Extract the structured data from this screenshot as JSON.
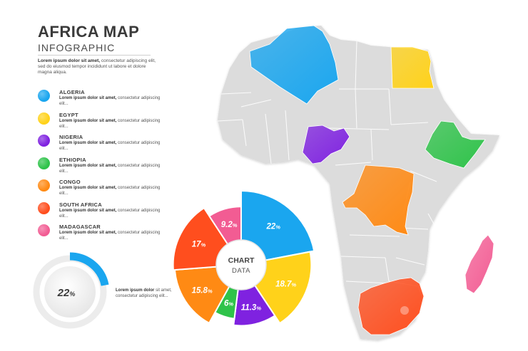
{
  "header": {
    "title": "AFRICA MAP",
    "subtitle": "INFOGRAPHIC"
  },
  "intro": {
    "bold": "Lorem ipsum dolor sit amet,",
    "rest": " consectetur adipiscing elit, sed do eiusmod tempor incididunt ut labore et dolore magna aliqua."
  },
  "legend": {
    "items": [
      {
        "name": "ALGERIA",
        "color": "#1aa6ef",
        "desc_bold": "Lorem ipsum dolor sit amet,",
        "desc_rest": " consectetur adipiscing elit..."
      },
      {
        "name": "EGYPT",
        "color": "#ffd21a",
        "desc_bold": "Lorem ipsum dolor sit amet,",
        "desc_rest": " consectetur adipiscing elit..."
      },
      {
        "name": "NIGERIA",
        "color": "#7f22e0",
        "desc_bold": "Lorem ipsum dolor sit amet,",
        "desc_rest": " consectetur adipiscing elit..."
      },
      {
        "name": "ETHIOPIA",
        "color": "#2fc34a",
        "desc_bold": "Lorem ipsum dolor sit amet,",
        "desc_rest": " consectetur adipiscing elit..."
      },
      {
        "name": "CONGO",
        "color": "#ff8a14",
        "desc_bold": "Lorem ipsum dolor sit amet,",
        "desc_rest": " consectetur adipiscing elit..."
      },
      {
        "name": "SOUTH AFRICA",
        "color": "#ff4e1e",
        "desc_bold": "Lorem ipsum dolor sit amet,",
        "desc_rest": " consectetur adipiscing elit..."
      },
      {
        "name": "MADAGASCAR",
        "color": "#f25c93",
        "desc_bold": "Lorem ipsum dolor sit amet,",
        "desc_rest": " consectetur adipiscing elit..."
      }
    ]
  },
  "gauge": {
    "label": "22",
    "unit": "%",
    "value": 0.22,
    "color": "#1aa6ef",
    "note_bold": "Lorem ipsum dolor",
    "note_rest": " sit amet, consectetur adipiscing elit..."
  },
  "chart": {
    "center_line1": "CHART",
    "center_line2": "DATA"
  },
  "chart_data": {
    "type": "pie",
    "center_label": "CHART DATA",
    "slices": [
      {
        "label": "22",
        "unit": "%",
        "value": 22,
        "color": "#1aa6ef"
      },
      {
        "label": "18.7",
        "unit": "%",
        "value": 18.7,
        "color": "#ffd21a"
      },
      {
        "label": "11.3",
        "unit": "%",
        "value": 11.3,
        "color": "#7f22e0"
      },
      {
        "label": "6",
        "unit": "%",
        "value": 6,
        "color": "#2fc34a"
      },
      {
        "label": "15.8",
        "unit": "%",
        "value": 15.8,
        "color": "#ff8a14"
      },
      {
        "label": "17",
        "unit": "%",
        "value": 17,
        "color": "#ff4e1e"
      },
      {
        "label": "9.2",
        "unit": "%",
        "value": 9.2,
        "color": "#f25c93"
      }
    ]
  },
  "map": {
    "base_color": "#dcdcdc",
    "highlights": [
      {
        "country": "algeria",
        "color": "#1aa6ef"
      },
      {
        "country": "egypt",
        "color": "#ffd21a"
      },
      {
        "country": "nigeria",
        "color": "#7f22e0"
      },
      {
        "country": "ethiopia",
        "color": "#2fc34a"
      },
      {
        "country": "congo",
        "color": "#ff8a14"
      },
      {
        "country": "south-africa",
        "color": "#ff4e1e"
      },
      {
        "country": "madagascar",
        "color": "#f25c93"
      }
    ]
  }
}
